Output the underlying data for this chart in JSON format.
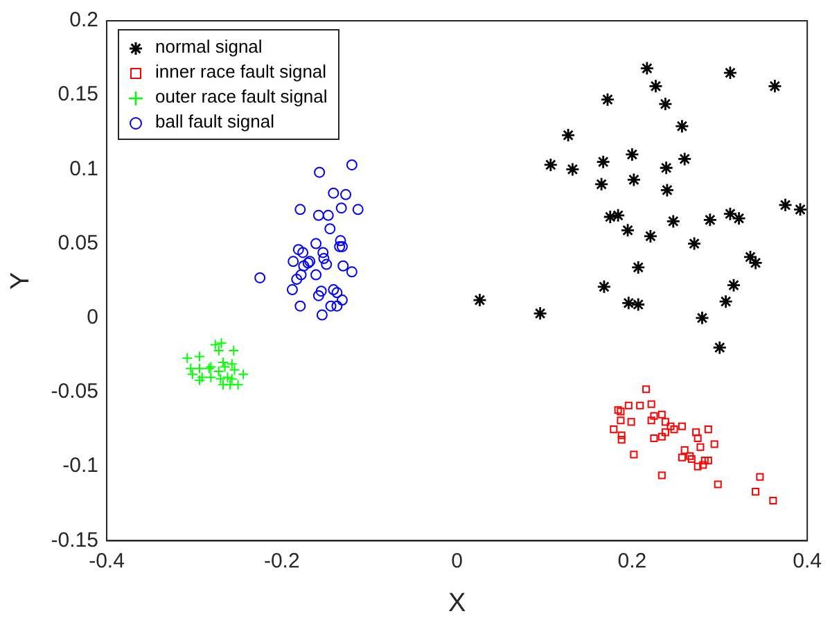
{
  "chart_data": {
    "type": "scatter",
    "xlabel": "X",
    "ylabel": "Y",
    "xlim": [
      -0.4,
      0.4
    ],
    "xticks": [
      -0.4,
      -0.2,
      0,
      0.2,
      0.4
    ],
    "ylim": [
      -0.15,
      0.2
    ],
    "yticks": [
      -0.15,
      -0.1,
      -0.05,
      0,
      0.05,
      0.1,
      0.15,
      0.2
    ],
    "grid": false,
    "legend": "top left",
    "series": [
      {
        "name": "normal signal",
        "color": "#000000",
        "x": [
          0.217,
          0.312,
          0.227,
          0.363,
          0.172,
          0.238,
          0.257,
          0.127,
          0.2,
          0.107,
          0.167,
          0.26,
          0.132,
          0.239,
          0.165,
          0.202,
          0.24,
          0.375,
          0.392,
          0.175,
          0.184,
          0.312,
          0.322,
          0.247,
          0.289,
          0.195,
          0.221,
          0.271,
          0.335,
          0.341,
          0.207,
          0.168,
          0.316,
          0.026,
          0.095,
          0.196,
          0.207,
          0.307,
          0.28,
          0.3
        ],
        "values": [
          0.168,
          0.165,
          0.156,
          0.156,
          0.147,
          0.144,
          0.129,
          0.123,
          0.11,
          0.103,
          0.105,
          0.107,
          0.1,
          0.101,
          0.09,
          0.093,
          0.086,
          0.076,
          0.073,
          0.068,
          0.069,
          0.07,
          0.067,
          0.065,
          0.066,
          0.059,
          0.055,
          0.05,
          0.041,
          0.037,
          0.034,
          0.021,
          0.022,
          0.012,
          0.003,
          0.01,
          0.009,
          0.011,
          0,
          -0.02
        ]
      },
      {
        "name": "inner race fault signal",
        "color": "#ff0000",
        "marker": "square",
        "x": [
          0.216,
          0.184,
          0.187,
          0.196,
          0.209,
          0.222,
          0.187,
          0.199,
          0.179,
          0.188,
          0.188,
          0.202,
          0.225,
          0.234,
          0.222,
          0.238,
          0.244,
          0.257,
          0.248,
          0.238,
          0.234,
          0.225,
          0.273,
          0.287,
          0.275,
          0.278,
          0.294,
          0.26,
          0.257,
          0.266,
          0.268,
          0.283,
          0.287,
          0.281,
          0.275,
          0.234,
          0.298,
          0.346,
          0.341,
          0.361
        ],
        "values": [
          -0.048,
          -0.062,
          -0.063,
          -0.059,
          -0.059,
          -0.058,
          -0.069,
          -0.07,
          -0.075,
          -0.079,
          -0.082,
          -0.092,
          -0.066,
          -0.065,
          -0.069,
          -0.07,
          -0.073,
          -0.073,
          -0.075,
          -0.077,
          -0.08,
          -0.081,
          -0.077,
          -0.075,
          -0.081,
          -0.087,
          -0.085,
          -0.089,
          -0.094,
          -0.093,
          -0.095,
          -0.096,
          -0.096,
          -0.099,
          -0.1,
          -0.106,
          -0.112,
          -0.107,
          -0.117,
          -0.123
        ]
      },
      {
        "name": "outer race fault signal",
        "color": "#00ff00",
        "marker": "cross",
        "x": [
          -0.276,
          -0.269,
          -0.308,
          -0.294,
          -0.272,
          -0.255,
          -0.304,
          -0.294,
          -0.283,
          -0.281,
          -0.267,
          -0.265,
          -0.257,
          -0.254,
          -0.244,
          -0.302,
          -0.291,
          -0.281,
          -0.272,
          -0.27,
          -0.262,
          -0.257,
          -0.294,
          -0.267,
          -0.259,
          -0.25
        ],
        "values": [
          -0.018,
          -0.017,
          -0.027,
          -0.026,
          -0.022,
          -0.022,
          -0.034,
          -0.034,
          -0.034,
          -0.033,
          -0.03,
          -0.033,
          -0.031,
          -0.035,
          -0.038,
          -0.038,
          -0.04,
          -0.04,
          -0.036,
          -0.041,
          -0.04,
          -0.041,
          -0.042,
          -0.045,
          -0.045,
          -0.045
        ]
      },
      {
        "name": "ball fault signal",
        "color": "#0000ff",
        "marker": "circle",
        "x": [
          -0.12,
          -0.157,
          -0.141,
          -0.127,
          -0.179,
          -0.132,
          -0.113,
          -0.158,
          -0.147,
          -0.145,
          -0.133,
          -0.131,
          -0.134,
          -0.161,
          -0.181,
          -0.176,
          -0.153,
          -0.152,
          -0.149,
          -0.187,
          -0.168,
          -0.17,
          -0.175,
          -0.13,
          -0.12,
          -0.225,
          -0.178,
          -0.183,
          -0.161,
          -0.188,
          -0.155,
          -0.141,
          -0.137,
          -0.158,
          -0.131,
          -0.179,
          -0.144,
          -0.137,
          -0.154
        ],
        "values": [
          0.103,
          0.098,
          0.084,
          0.083,
          0.073,
          0.074,
          0.073,
          0.069,
          0.069,
          0.06,
          0.052,
          0.048,
          0.048,
          0.05,
          0.046,
          0.044,
          0.044,
          0.04,
          0.036,
          0.038,
          0.038,
          0.037,
          0.035,
          0.035,
          0.031,
          0.027,
          0.029,
          0.026,
          0.029,
          0.019,
          0.018,
          0.019,
          0.017,
          0.015,
          0.012,
          0.008,
          0.008,
          0.008,
          0.002
        ]
      }
    ]
  }
}
